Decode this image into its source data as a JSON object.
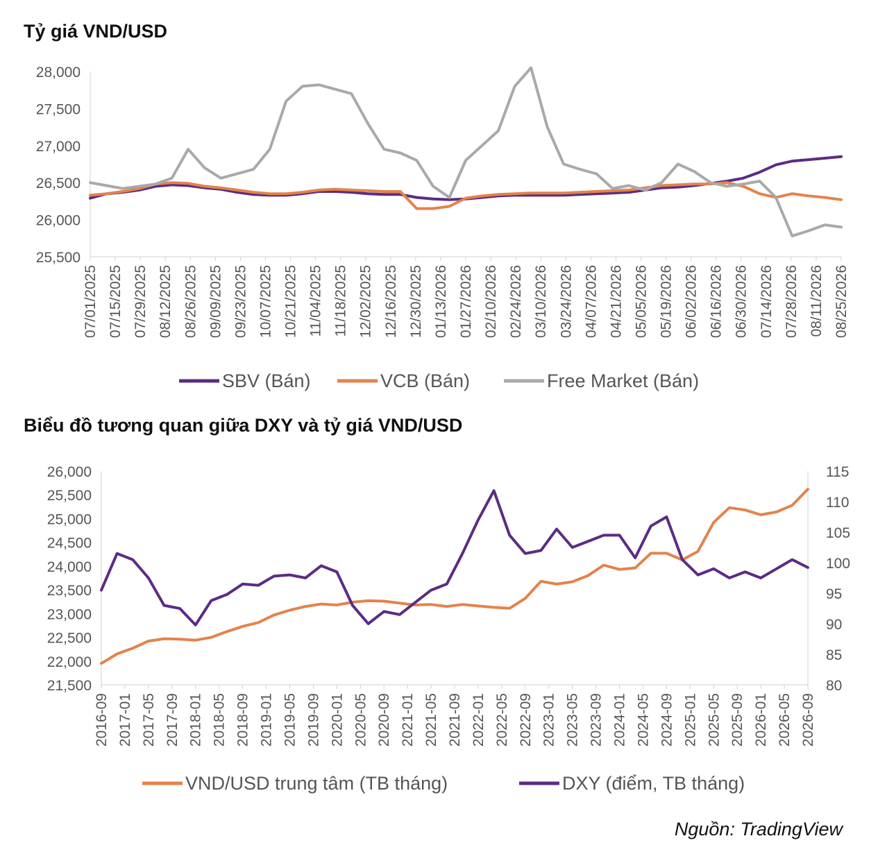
{
  "chart_data": [
    {
      "type": "line",
      "title": "Tỷ giá VND/USD",
      "ylim": [
        25500,
        28000
      ],
      "yticks": [
        "25,500",
        "26,000",
        "26,500",
        "27,000",
        "27,500",
        "28,000"
      ],
      "ytick_values": [
        25500,
        26000,
        26500,
        27000,
        27500,
        28000
      ],
      "xticks": [
        "07/01/2025",
        "07/15/2025",
        "07/29/2025",
        "08/12/2025",
        "08/26/2025",
        "09/09/2025",
        "09/23/2025",
        "10/07/2025",
        "10/21/2025",
        "11/04/2025",
        "11/18/2025",
        "12/02/2025",
        "12/16/2025",
        "12/30/2025",
        "01/13/2026",
        "01/27/2026",
        "02/10/2026",
        "02/24/2026",
        "03/10/2026",
        "03/24/2026",
        "04/07/2026",
        "04/21/2026",
        "05/05/2026",
        "05/19/2026",
        "06/02/2026",
        "06/16/2026",
        "06/30/2026",
        "07/14/2026",
        "07/28/2026",
        "08/11/2026",
        "08/25/2026"
      ],
      "grid": false,
      "legend_position": "bottom",
      "series": [
        {
          "name": "SBV (Bán)",
          "color": "#5b2c83",
          "values": [
            26290,
            26350,
            26370,
            26400,
            26450,
            26470,
            26460,
            26430,
            26410,
            26370,
            26340,
            26330,
            26330,
            26350,
            26380,
            26380,
            26370,
            26350,
            26340,
            26340,
            26300,
            26280,
            26270,
            26280,
            26300,
            26320,
            26330,
            26330,
            26330,
            26330,
            26340,
            26350,
            26360,
            26370,
            26400,
            26430,
            26440,
            26460,
            26490,
            26520,
            26560,
            26640,
            26740,
            26790,
            26810,
            26830,
            26850
          ]
        },
        {
          "name": "VCB (Bán)",
          "color": "#e3834c",
          "values": [
            26330,
            26350,
            26380,
            26420,
            26480,
            26500,
            26490,
            26450,
            26430,
            26400,
            26370,
            26350,
            26350,
            26370,
            26400,
            26410,
            26400,
            26390,
            26380,
            26380,
            26150,
            26150,
            26180,
            26290,
            26320,
            26340,
            26350,
            26360,
            26360,
            26360,
            26370,
            26380,
            26390,
            26400,
            26430,
            26460,
            26470,
            26480,
            26480,
            26500,
            26450,
            26350,
            26300,
            26350,
            26320,
            26300,
            26270
          ]
        },
        {
          "name": "Free Market (Bán)",
          "color": "#a9a9a9",
          "values": [
            26500,
            26460,
            26420,
            26450,
            26480,
            26560,
            26950,
            26700,
            26560,
            26620,
            26680,
            26950,
            27600,
            27800,
            27820,
            27760,
            27700,
            27300,
            26950,
            26900,
            26800,
            26450,
            26300,
            26800,
            27000,
            27200,
            27800,
            28050,
            27250,
            26750,
            26680,
            26620,
            26420,
            26460,
            26400,
            26500,
            26750,
            26650,
            26500,
            26450,
            26480,
            26520,
            26300,
            25780,
            25850,
            25930,
            25900
          ]
        }
      ]
    },
    {
      "type": "line",
      "title": "Biểu đồ tương quan giữa DXY và tỷ giá VND/USD",
      "ylim": [
        21500,
        26000
      ],
      "y2lim": [
        80,
        115
      ],
      "yticks": [
        "21,500",
        "22,000",
        "22,500",
        "23,000",
        "23,500",
        "24,000",
        "24,500",
        "25,000",
        "25,500",
        "26,000"
      ],
      "ytick_values": [
        21500,
        22000,
        22500,
        23000,
        23500,
        24000,
        24500,
        25000,
        25500,
        26000
      ],
      "y2ticks": [
        "80",
        "85",
        "90",
        "95",
        "100",
        "105",
        "110",
        "115"
      ],
      "y2tick_values": [
        80,
        85,
        90,
        95,
        100,
        105,
        110,
        115
      ],
      "xticks": [
        "2016-09",
        "2017-01",
        "2017-05",
        "2017-09",
        "2018-01",
        "2018-05",
        "2018-09",
        "2019-01",
        "2019-05",
        "2019-09",
        "2020-01",
        "2020-05",
        "2020-09",
        "2021-01",
        "2021-05",
        "2021-09",
        "2022-01",
        "2022-05",
        "2022-09",
        "2023-01",
        "2023-05",
        "2023-09",
        "2024-01",
        "2024-05",
        "2024-09",
        "2025-01",
        "2025-05",
        "2025-09",
        "2026-01",
        "2026-05",
        "2026-09"
      ],
      "grid": false,
      "legend_position": "bottom",
      "series": [
        {
          "name": "VND/USD trung tâm (TB tháng)",
          "color": "#e3834c",
          "axis": "left",
          "values": [
            21950,
            22150,
            22270,
            22420,
            22470,
            22460,
            22440,
            22500,
            22620,
            22730,
            22810,
            22970,
            23070,
            23150,
            23200,
            23180,
            23240,
            23270,
            23260,
            23220,
            23180,
            23190,
            23150,
            23190,
            23160,
            23130,
            23110,
            23320,
            23680,
            23620,
            23670,
            23800,
            24020,
            23930,
            23960,
            24270,
            24270,
            24130,
            24310,
            24920,
            25230,
            25180,
            25080,
            25140,
            25280,
            25620
          ]
        },
        {
          "name": "DXY (điểm, TB tháng)",
          "color": "#5b2c83",
          "axis": "right",
          "values": [
            95.5,
            101.5,
            100.5,
            97.5,
            93.0,
            92.5,
            89.8,
            93.8,
            94.8,
            96.5,
            96.3,
            97.8,
            98.0,
            97.5,
            99.5,
            98.5,
            93.0,
            90.0,
            92.0,
            91.5,
            93.5,
            95.5,
            96.5,
            101.5,
            107.0,
            111.8,
            104.5,
            101.5,
            102.0,
            105.5,
            102.5,
            103.5,
            104.5,
            104.5,
            100.8,
            106.0,
            107.5,
            100.5,
            98.0,
            99.0,
            97.5,
            98.5,
            97.5,
            99.0,
            100.5,
            99.2
          ]
        }
      ]
    }
  ],
  "source": "Nguồn: TradingView"
}
